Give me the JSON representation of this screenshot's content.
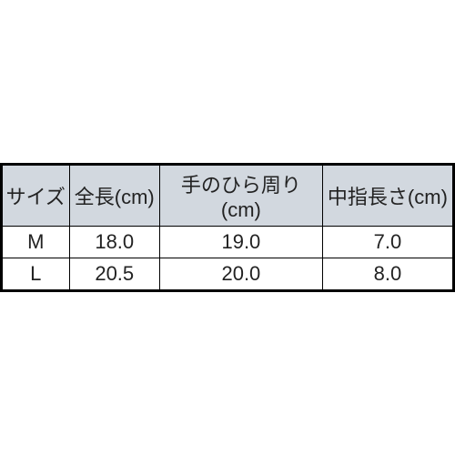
{
  "table": {
    "type": "table",
    "header_bg": "#d2d8df",
    "body_bg": "#ffffff",
    "border_color": "#000000",
    "outer_border_width": 3,
    "inner_border_width": 1,
    "font_size": 22,
    "text_color": "#222222",
    "columns": [
      {
        "label": "サイズ",
        "width_pct": 15,
        "align": "center"
      },
      {
        "label": "全長(cm)",
        "width_pct": 20,
        "align": "center"
      },
      {
        "label": "手のひら周り(cm)",
        "width_pct": 36,
        "align": "center"
      },
      {
        "label": "中指長さ(cm)",
        "width_pct": 29,
        "align": "center"
      }
    ],
    "rows": [
      [
        "M",
        "18.0",
        "19.0",
        "7.0"
      ],
      [
        "L",
        "20.5",
        "20.0",
        "8.0"
      ]
    ]
  }
}
